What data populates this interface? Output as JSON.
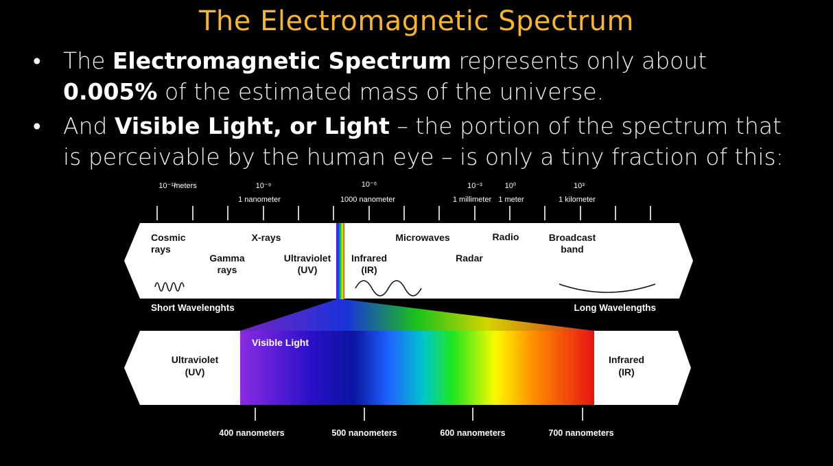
{
  "slide": {
    "title": "The Electromagnetic Spectrum",
    "bullets": [
      {
        "pre": "The ",
        "bold1": "Electromagnetic Spectrum",
        "mid": " represents only about ",
        "bold2": "0.005%",
        "post": " of the estimated mass of the universe."
      },
      {
        "pre": "And ",
        "bold1": "Visible Light, or Light",
        "mid": " – the portion of the spectrum that is perceivable by the human eye – is only a tiny fraction of this:",
        "bold2": "",
        "post": ""
      }
    ]
  },
  "diagram": {
    "scale_top": {
      "exponents": [
        "10⁻¹²",
        "10⁻⁹",
        "10⁻⁶",
        "10⁻³",
        "10⁰",
        "10³"
      ],
      "meters_label": "meters",
      "units": [
        "1 nanometer",
        "1000 nanometer",
        "1 millimeter",
        "1 meter",
        "1 kilometer"
      ]
    },
    "bands": {
      "cosmic": [
        "Cosmic",
        "rays"
      ],
      "gamma": [
        "Gamma",
        "rays"
      ],
      "xrays": "X-rays",
      "uv": [
        "Ultraviolet",
        "(UV)"
      ],
      "ir": [
        "Infrared",
        "(IR)"
      ],
      "microwaves": "Microwaves",
      "radar": "Radar",
      "radio": "Radio",
      "broadcast": [
        "Broadcast",
        "band"
      ]
    },
    "short_label": "Short Wavelenghts",
    "long_label": "Long Wavelengths",
    "visible": {
      "title": "Visible Light",
      "left": [
        "Ultraviolet",
        "(UV)"
      ],
      "right": [
        "Infrared",
        "(IR)"
      ],
      "ticks": [
        "400 nanometers",
        "500 nanometers",
        "600 nanometers",
        "700 nanometers"
      ]
    },
    "colors": {
      "title": "#f6b52a",
      "violet": "#8a2be2",
      "blue": "#0a14a0",
      "green": "#1ee61e",
      "yellow": "#fafa00",
      "red": "#e61414"
    }
  }
}
